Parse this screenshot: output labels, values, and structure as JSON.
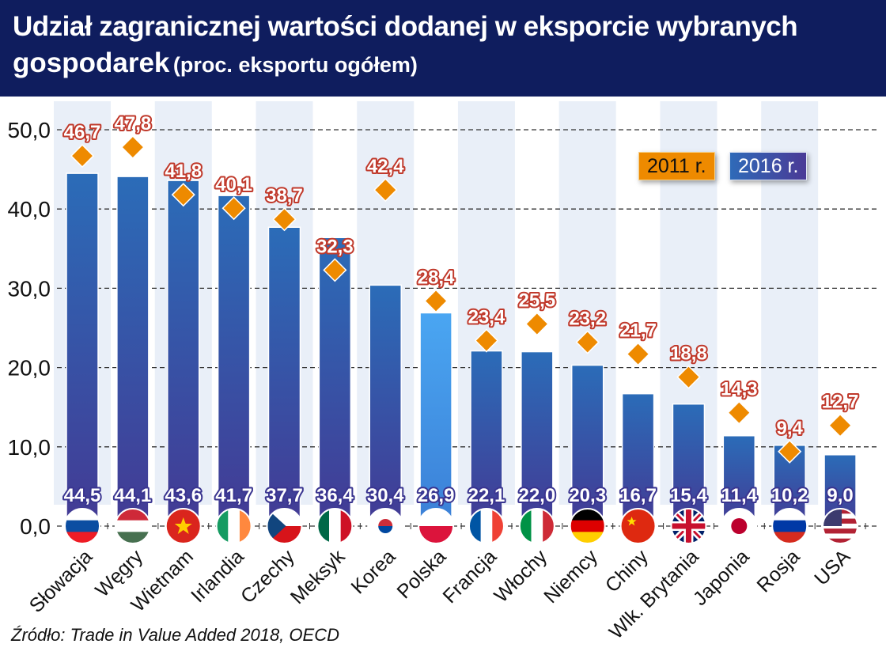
{
  "title": {
    "main": "Udział zagranicznej wartości dodanej w eksporcie wybranych",
    "line2": "gospodarek",
    "unit": "(proc. eksportu ogółem)"
  },
  "source": "Źródło: Trade in Value Added 2018, OECD",
  "colors": {
    "header": "#0f1d5e",
    "bar_top": "#2b6cb8",
    "bar_bottom": "#433a94",
    "bar_highlight": "#4aa6f2",
    "marker": "#ee8a00",
    "label_outline": "#c0392b"
  },
  "chart_data": {
    "type": "bar",
    "categories": [
      "Słowacja",
      "Węgry",
      "Wietnam",
      "Irlandia",
      "Czechy",
      "Meksyk",
      "Korea",
      "Polska",
      "Francja",
      "Włochy",
      "Niemcy",
      "Chiny",
      "Wlk. Brytania",
      "Japonia",
      "Rosja",
      "USA"
    ],
    "flags": [
      "flag-slovakia",
      "flag-hungary",
      "flag-vietnam",
      "flag-ireland",
      "flag-czechia",
      "flag-mexico",
      "flag-korea",
      "flag-poland",
      "flag-france",
      "flag-italy",
      "flag-germany",
      "flag-china",
      "flag-uk",
      "flag-japan",
      "flag-russia",
      "flag-usa"
    ],
    "series": [
      {
        "name": "2016 r.",
        "kind": "bar",
        "values": [
          44.5,
          44.1,
          43.6,
          41.7,
          37.7,
          36.4,
          30.4,
          26.9,
          22.1,
          22.0,
          20.3,
          16.7,
          15.4,
          11.4,
          10.2,
          9.0
        ],
        "labels": [
          "44,5",
          "44,1",
          "43,6",
          "41,7",
          "37,7",
          "36,4",
          "30,4",
          "26,9",
          "22,1",
          "22,0",
          "20,3",
          "16,7",
          "15,4",
          "11,4",
          "10,2",
          "9,0"
        ]
      },
      {
        "name": "2011 r.",
        "kind": "diamond-marker",
        "values": [
          46.7,
          47.8,
          41.8,
          40.1,
          38.7,
          32.3,
          42.4,
          28.4,
          23.4,
          25.5,
          23.2,
          21.7,
          18.8,
          14.3,
          9.4,
          12.7
        ],
        "labels": [
          "46,7",
          "47,8",
          "41,8",
          "40,1",
          "38,7",
          "32,3",
          "42,4",
          "28,4",
          "23,4",
          "25,5",
          "23,2",
          "21,7",
          "18,8",
          "14,3",
          "9,4",
          "12,7"
        ]
      }
    ],
    "highlight_category": "Polska",
    "yticks": [
      "0,0",
      "10,0",
      "20,0",
      "30,0",
      "40,0",
      "50,0"
    ],
    "ylim": [
      0,
      50
    ],
    "grid": true,
    "legend": "top-right"
  }
}
